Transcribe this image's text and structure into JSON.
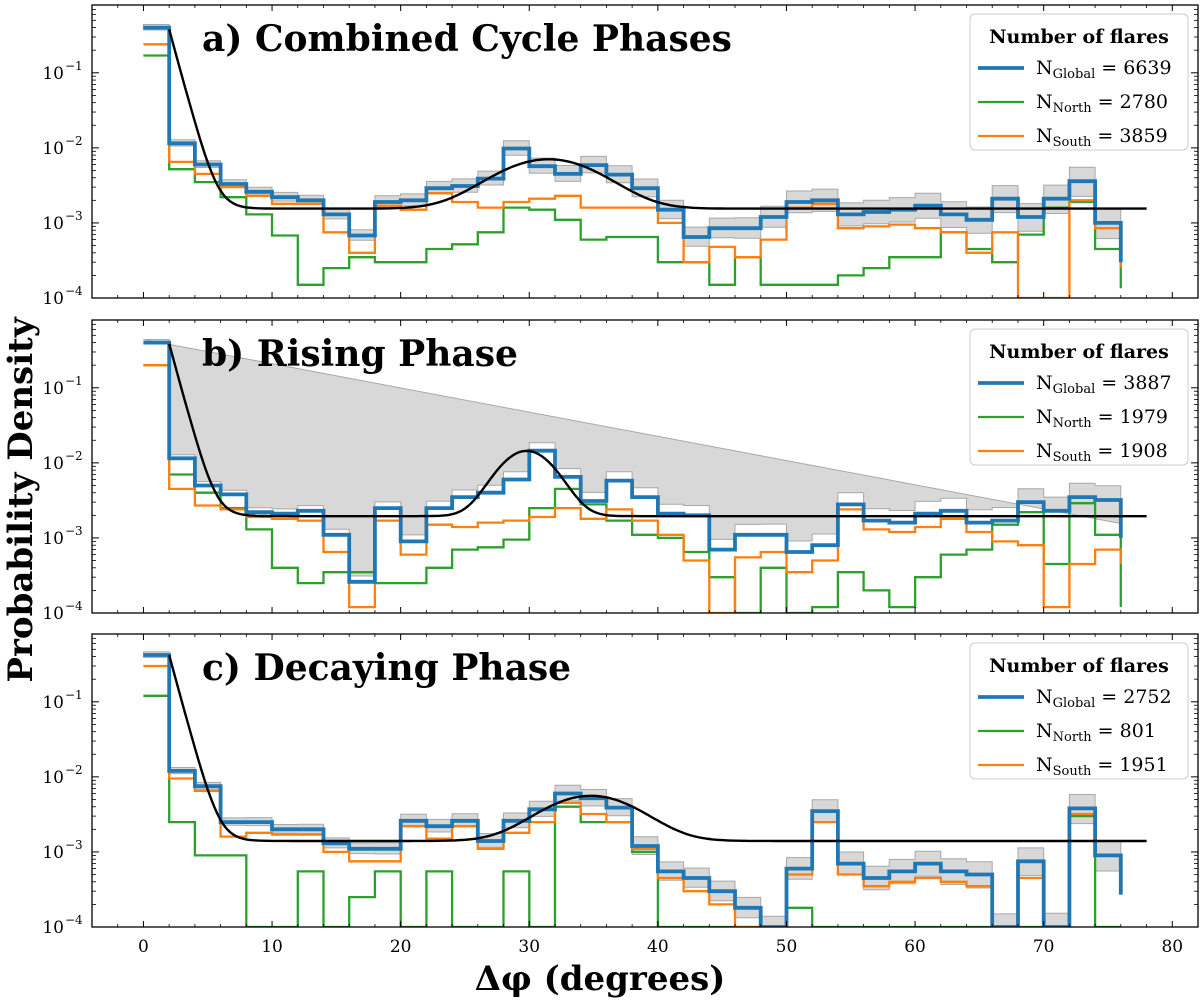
{
  "figure": {
    "xlabel": "Δφ (degrees)",
    "ylabel": "Probability Density"
  },
  "chart_data": [
    {
      "type": "line",
      "title": "a) Combined Cycle Phases",
      "xlim": [
        -4,
        82
      ],
      "ylim": [
        0.0001,
        0.8
      ],
      "yscale": "log",
      "xticks": [
        0,
        10,
        20,
        30,
        40,
        50,
        60,
        70,
        80
      ],
      "yticks": [
        0.0001,
        0.001,
        0.01,
        0.1
      ],
      "ytick_labels": [
        [
          "10",
          "−4"
        ],
        [
          "10",
          "−3"
        ],
        [
          "10",
          "−2"
        ],
        [
          "10",
          "−1"
        ]
      ],
      "legend": {
        "title": "Number of flares",
        "position": "top-right",
        "entries": [
          {
            "label_main": "N",
            "label_sub": "Global",
            "label_rest": " = 6639"
          },
          {
            "label_main": "N",
            "label_sub": "North",
            "label_rest": " = 2780"
          },
          {
            "label_main": "N",
            "label_sub": "South",
            "label_rest": " = 3859"
          }
        ]
      },
      "bin_edges": [
        0,
        2,
        4,
        6,
        8,
        10,
        12,
        14,
        16,
        18,
        20,
        22,
        24,
        26,
        28,
        30,
        32,
        34,
        36,
        38,
        40,
        42,
        44,
        46,
        48,
        50,
        52,
        54,
        56,
        58,
        60,
        62,
        64,
        66,
        68,
        70,
        72,
        74,
        76
      ],
      "series": [
        {
          "key": "global",
          "color": "#1f77b4",
          "width": 3.8,
          "values": [
            0.4,
            0.0115,
            0.006,
            0.0033,
            0.0026,
            0.0022,
            0.002,
            0.0013,
            0.00068,
            0.0019,
            0.002,
            0.0029,
            0.0031,
            0.0039,
            0.0098,
            0.0057,
            0.0045,
            0.0059,
            0.0044,
            0.0029,
            0.0015,
            0.00065,
            0.00085,
            0.00085,
            0.0012,
            0.0019,
            0.002,
            0.0013,
            0.0014,
            0.0015,
            0.0017,
            0.0013,
            0.0011,
            0.0021,
            0.0012,
            0.0021,
            0.0036,
            0.001
          ]
        },
        {
          "key": "north",
          "color": "#2ca02c",
          "width": 2.3,
          "values": [
            0.17,
            0.0052,
            0.0035,
            0.0022,
            0.0013,
            0.00068,
            0.00015,
            0.00025,
            0.00035,
            0.0003,
            0.0003,
            0.00045,
            0.00052,
            0.00075,
            0.0016,
            0.0015,
            0.0011,
            0.0006,
            0.00065,
            0.00065,
            0.0003,
            0.0003,
            0.00015,
            0.00035,
            0.00015,
            0.00015,
            0.00015,
            0.0002,
            0.00025,
            0.00035,
            0.00035,
            0.00075,
            0.00045,
            0.0003,
            0.0007,
            0.0016,
            0.0019,
            0.00045
          ]
        },
        {
          "key": "south",
          "color": "#ff7f0e",
          "width": 2.3,
          "values": [
            0.24,
            0.0065,
            0.0045,
            0.003,
            0.0023,
            0.0018,
            0.0018,
            0.00075,
            0.0004,
            0.0017,
            0.0015,
            0.0025,
            0.0019,
            0.0016,
            0.0019,
            0.0021,
            0.0023,
            0.0016,
            0.0016,
            0.0016,
            0.001,
            0.0003,
            0.00048,
            0.00035,
            0.0006,
            0.0016,
            0.0018,
            0.00085,
            0.0009,
            0.00095,
            0.00085,
            0.00075,
            0.0004,
            0.00075,
            0.0001,
            0.0001,
            0.002,
            0.00085
          ]
        }
      ],
      "fit": {
        "baseline": 0.00155,
        "spike_a": 0.0047,
        "spike_k": 1.45,
        "gauss_a": 0.0055,
        "gauss_mu": 31.5,
        "gauss_sigma": 3.6
      }
    },
    {
      "type": "line",
      "title": "b) Rising Phase",
      "xlim": [
        -4,
        82
      ],
      "ylim": [
        0.0001,
        0.8
      ],
      "yscale": "log",
      "xticks": [
        0,
        10,
        20,
        30,
        40,
        50,
        60,
        70,
        80
      ],
      "yticks": [
        0.0001,
        0.001,
        0.01,
        0.1
      ],
      "ytick_labels": [
        [
          "10",
          "−4"
        ],
        [
          "10",
          "−3"
        ],
        [
          "10",
          "−2"
        ],
        [
          "10",
          "−1"
        ]
      ],
      "legend": {
        "title": "Number of flares",
        "position": "top-right",
        "entries": [
          {
            "label_main": "N",
            "label_sub": "Global",
            "label_rest": " = 3887"
          },
          {
            "label_main": "N",
            "label_sub": "North",
            "label_rest": " = 1979"
          },
          {
            "label_main": "N",
            "label_sub": "South",
            "label_rest": " = 1908"
          }
        ]
      },
      "bin_edges": [
        0,
        2,
        4,
        6,
        8,
        10,
        12,
        14,
        16,
        18,
        20,
        22,
        24,
        26,
        28,
        30,
        32,
        34,
        36,
        38,
        40,
        42,
        44,
        46,
        48,
        50,
        52,
        54,
        56,
        58,
        60,
        62,
        64,
        66,
        68,
        70,
        72,
        74,
        76
      ],
      "series": [
        {
          "key": "global",
          "color": "#1f77b4",
          "width": 3.8,
          "values": [
            0.4,
            0.0115,
            0.005,
            0.0038,
            0.0022,
            0.0021,
            0.0023,
            0.0011,
            0.00026,
            0.0025,
            0.0009,
            0.0025,
            0.0035,
            0.004,
            0.006,
            0.0145,
            0.0065,
            0.0031,
            0.0058,
            0.0035,
            0.0021,
            0.002,
            0.0007,
            0.0011,
            0.0011,
            0.00065,
            0.0008,
            0.0028,
            0.0017,
            0.0016,
            0.0021,
            0.0023,
            0.0016,
            0.0017,
            0.003,
            0.0023,
            0.0035,
            0.0032,
            0.001
          ]
        },
        {
          "key": "north",
          "color": "#2ca02c",
          "width": 2.3,
          "values": [
            0.2,
            0.007,
            0.004,
            0.0025,
            0.0013,
            0.0004,
            0.00025,
            0.00035,
            0.00035,
            0.00025,
            0.00025,
            0.0004,
            0.0007,
            0.00075,
            0.00095,
            0.0025,
            0.0045,
            0.0028,
            0.0017,
            0.0011,
            0.001,
            0.00065,
            0.0003,
            0.0001,
            0.0004,
            0.0001,
            0.00012,
            0.00035,
            0.0002,
            0.00012,
            0.0003,
            0.0006,
            0.0007,
            0.0015,
            0.0022,
            0.00045,
            0.0029,
            0.0011,
            0.00012
          ]
        },
        {
          "key": "south",
          "color": "#ff7f0e",
          "width": 2.3,
          "values": [
            0.2,
            0.0045,
            0.0027,
            0.0024,
            0.0019,
            0.0018,
            0.0017,
            0.00065,
            0.00012,
            0.0017,
            0.0006,
            0.0015,
            0.0014,
            0.0016,
            0.0017,
            0.0019,
            0.0025,
            0.0018,
            0.0024,
            0.0017,
            0.0011,
            0.0005,
            0.0001,
            0.00055,
            0.00065,
            0.00035,
            0.0005,
            0.0024,
            0.0013,
            0.0012,
            0.0014,
            0.0018,
            0.0012,
            0.0009,
            0.0008,
            0.00012,
            0.00045,
            0.0007,
            0.00045
          ]
        }
      ],
      "fit": {
        "baseline": 0.00195,
        "spike_a": 0.0048,
        "spike_k": 1.45,
        "gauss_a": 0.0125,
        "gauss_mu": 29.8,
        "gauss_sigma": 1.9
      }
    },
    {
      "type": "line",
      "title": "c) Decaying Phase",
      "xlim": [
        -4,
        82
      ],
      "ylim": [
        0.0001,
        0.8
      ],
      "yscale": "log",
      "xticks": [
        0,
        10,
        20,
        30,
        40,
        50,
        60,
        70,
        80
      ],
      "xtick_labels": [
        "0",
        "10",
        "20",
        "30",
        "40",
        "50",
        "60",
        "70",
        "80"
      ],
      "yticks": [
        0.0001,
        0.001,
        0.01,
        0.1
      ],
      "ytick_labels": [
        [
          "10",
          "−4"
        ],
        [
          "10",
          "−3"
        ],
        [
          "10",
          "−2"
        ],
        [
          "10",
          "−1"
        ]
      ],
      "legend": {
        "title": "Number of flares",
        "position": "top-right",
        "entries": [
          {
            "label_main": "N",
            "label_sub": "Global",
            "label_rest": " = 2752"
          },
          {
            "label_main": "N",
            "label_sub": "North",
            "label_rest": " = 801"
          },
          {
            "label_main": "N",
            "label_sub": "South",
            "label_rest": " = 1951"
          }
        ]
      },
      "bin_edges": [
        0,
        2,
        4,
        6,
        8,
        10,
        12,
        14,
        16,
        18,
        20,
        22,
        24,
        26,
        28,
        30,
        32,
        34,
        36,
        38,
        40,
        42,
        44,
        46,
        48,
        50,
        52,
        54,
        56,
        58,
        60,
        62,
        64,
        66,
        68,
        70,
        72,
        74,
        76
      ],
      "series": [
        {
          "key": "global",
          "color": "#1f77b4",
          "width": 3.8,
          "values": [
            0.42,
            0.012,
            0.0075,
            0.0025,
            0.0025,
            0.002,
            0.002,
            0.0013,
            0.0011,
            0.0011,
            0.0026,
            0.0022,
            0.0026,
            0.0014,
            0.0026,
            0.0037,
            0.006,
            0.0052,
            0.0039,
            0.0012,
            0.00055,
            0.00045,
            0.0003,
            0.00018,
            0.0001,
            0.0006,
            0.0035,
            0.0007,
            0.00045,
            0.00055,
            0.0007,
            0.00055,
            0.0005,
            0.0001,
            0.00075,
            0.0001,
            0.0038,
            0.0009
          ]
        },
        {
          "key": "north",
          "color": "#2ca02c",
          "width": 2.3,
          "values": [
            0.12,
            0.0025,
            0.0009,
            0.0009,
            0.0001,
            0.0001,
            0.00055,
            0.0001,
            0.00025,
            0.00055,
            0.0001,
            0.00055,
            0.0001,
            0.0001,
            0.00055,
            0.0001,
            0.004,
            0.0025,
            0.0025,
            0.001,
            0.0001,
            0.0001,
            0.0001,
            0.0001,
            0.0001,
            0.00018,
            0.0001,
            0.0001,
            0.0001,
            0.0001,
            0.0001,
            0.0001,
            0.0001,
            0.0001,
            0.0001,
            0.0001,
            0.003,
            0.0001
          ]
        },
        {
          "key": "south",
          "color": "#ff7f0e",
          "width": 2.3,
          "values": [
            0.3,
            0.0095,
            0.0065,
            0.0016,
            0.0018,
            0.0017,
            0.0017,
            0.001,
            0.00075,
            0.00075,
            0.0022,
            0.0015,
            0.0022,
            0.0011,
            0.0018,
            0.0025,
            0.0045,
            0.0032,
            0.0025,
            0.0011,
            0.00045,
            0.0003,
            0.0002,
            0.0001,
            0.0001,
            0.0005,
            0.0025,
            0.0005,
            0.00035,
            0.0004,
            0.00045,
            0.0004,
            0.00035,
            0.0001,
            0.00045,
            0.0001,
            0.0032,
            0.0009
          ]
        }
      ],
      "fit": {
        "baseline": 0.0014,
        "spike_a": 0.0052,
        "spike_k": 1.45,
        "gauss_a": 0.0042,
        "gauss_mu": 34.8,
        "gauss_sigma": 3.3
      }
    }
  ]
}
